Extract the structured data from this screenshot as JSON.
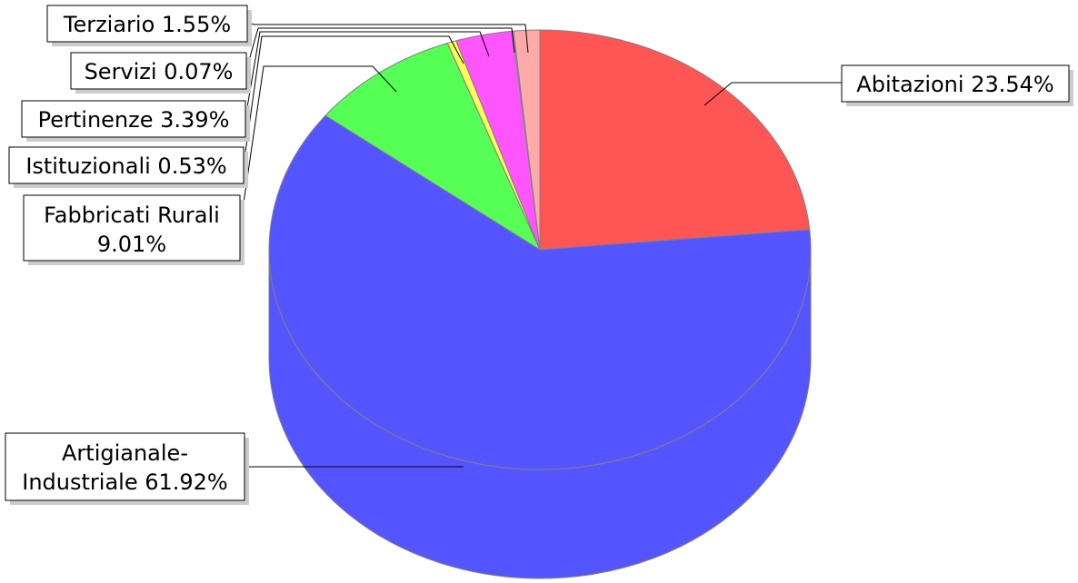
{
  "chart_data": {
    "type": "pie",
    "style": "3d",
    "title": "",
    "slices": [
      {
        "label": "Abitazioni",
        "value": 23.54,
        "display": "Abitazioni 23.54%",
        "color": "#ff5555"
      },
      {
        "label": "Artigianale-Industriale",
        "value": 61.92,
        "display": "Artigianale-Industriale 61.92%",
        "color": "#5555ff"
      },
      {
        "label": "Fabbricati Rurali",
        "value": 9.01,
        "display": "Fabbricati Rurali 9.01%",
        "color": "#55ff55"
      },
      {
        "label": "Istituzionali",
        "value": 0.53,
        "display": "Istituzionali 0.53%",
        "color": "#ffff55"
      },
      {
        "label": "Pertinenze",
        "value": 3.39,
        "display": "Pertinenze 3.39%",
        "color": "#ff55ff"
      },
      {
        "label": "Servizi",
        "value": 0.07,
        "display": "Servizi 0.07%",
        "color": "#55ffff"
      },
      {
        "label": "Terziario",
        "value": 1.55,
        "display": "Terziario 1.55%",
        "color": "#ffaaaa"
      }
    ]
  }
}
